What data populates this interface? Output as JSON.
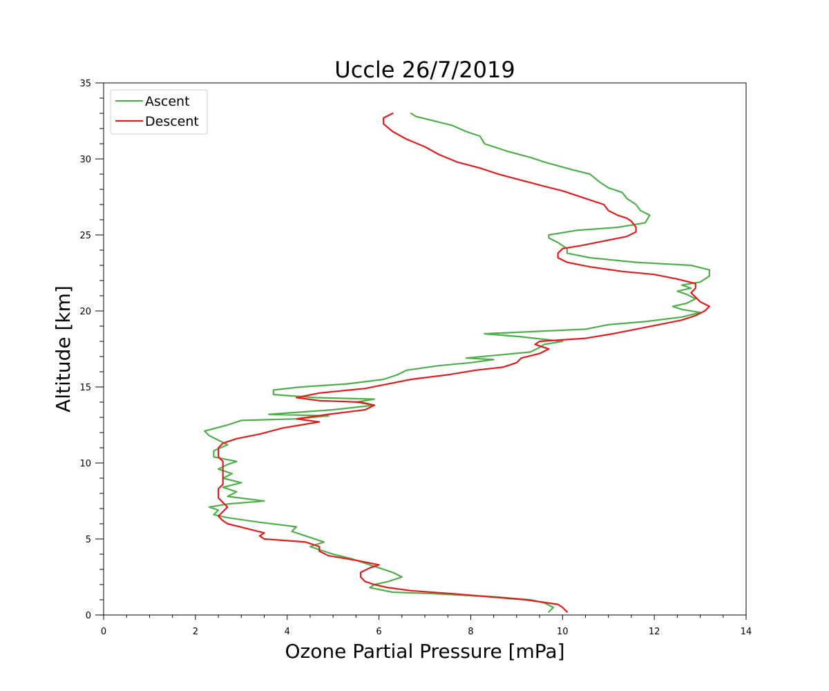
{
  "chart_data": {
    "type": "line",
    "title": "Uccle 26/7/2019",
    "xlabel": "Ozone Partial Pressure [mPa]",
    "ylabel": "Altitude [km]",
    "xlim": [
      0,
      14
    ],
    "ylim": [
      0,
      35
    ],
    "x_ticks": [
      0,
      2,
      4,
      6,
      8,
      10,
      12,
      14
    ],
    "y_ticks": [
      0,
      5,
      10,
      15,
      20,
      25,
      30,
      35
    ],
    "grid": false,
    "legend_position": "top-left",
    "series": [
      {
        "name": "Ascent",
        "color": "#4daf4a",
        "points": [
          [
            9.7,
            0.2
          ],
          [
            9.8,
            0.5
          ],
          [
            9.6,
            0.8
          ],
          [
            9.3,
            1.0
          ],
          [
            8.5,
            1.2
          ],
          [
            7.2,
            1.4
          ],
          [
            6.3,
            1.5
          ],
          [
            5.8,
            1.8
          ],
          [
            5.9,
            2.0
          ],
          [
            6.2,
            2.2
          ],
          [
            6.5,
            2.5
          ],
          [
            6.3,
            2.8
          ],
          [
            6.0,
            3.1
          ],
          [
            5.7,
            3.4
          ],
          [
            5.4,
            3.7
          ],
          [
            5.0,
            4.0
          ],
          [
            4.7,
            4.3
          ],
          [
            4.5,
            4.5
          ],
          [
            4.8,
            4.8
          ],
          [
            4.4,
            5.2
          ],
          [
            4.1,
            5.5
          ],
          [
            4.2,
            5.8
          ],
          [
            3.4,
            6.1
          ],
          [
            2.7,
            6.4
          ],
          [
            2.4,
            6.6
          ],
          [
            2.5,
            6.9
          ],
          [
            2.3,
            7.1
          ],
          [
            2.7,
            7.3
          ],
          [
            3.5,
            7.5
          ],
          [
            2.7,
            7.8
          ],
          [
            2.9,
            8.1
          ],
          [
            2.6,
            8.4
          ],
          [
            3.0,
            8.7
          ],
          [
            2.6,
            9.0
          ],
          [
            2.8,
            9.3
          ],
          [
            2.5,
            9.6
          ],
          [
            2.7,
            9.9
          ],
          [
            2.9,
            10.1
          ],
          [
            2.4,
            10.4
          ],
          [
            2.4,
            10.8
          ],
          [
            2.7,
            11.2
          ],
          [
            2.5,
            11.5
          ],
          [
            2.3,
            11.8
          ],
          [
            2.2,
            12.1
          ],
          [
            2.7,
            12.5
          ],
          [
            3.0,
            12.8
          ],
          [
            4.2,
            12.9
          ],
          [
            4.9,
            13.1
          ],
          [
            3.6,
            13.2
          ],
          [
            5.0,
            13.5
          ],
          [
            5.9,
            13.8
          ],
          [
            5.5,
            14.0
          ],
          [
            5.9,
            14.2
          ],
          [
            4.6,
            14.3
          ],
          [
            3.7,
            14.5
          ],
          [
            3.7,
            14.8
          ],
          [
            4.3,
            15.0
          ],
          [
            5.3,
            15.2
          ],
          [
            6.1,
            15.5
          ],
          [
            6.4,
            15.8
          ],
          [
            6.6,
            16.1
          ],
          [
            7.3,
            16.4
          ],
          [
            8.0,
            16.6
          ],
          [
            8.5,
            16.8
          ],
          [
            7.9,
            16.9
          ],
          [
            8.6,
            17.1
          ],
          [
            9.3,
            17.3
          ],
          [
            9.5,
            17.6
          ],
          [
            9.6,
            17.8
          ],
          [
            10.0,
            18.0
          ],
          [
            9.1,
            18.3
          ],
          [
            8.3,
            18.5
          ],
          [
            10.5,
            18.8
          ],
          [
            11.0,
            19.1
          ],
          [
            11.8,
            19.3
          ],
          [
            12.6,
            19.6
          ],
          [
            13.0,
            19.9
          ],
          [
            12.6,
            20.1
          ],
          [
            12.4,
            20.3
          ],
          [
            12.7,
            20.5
          ],
          [
            12.9,
            20.8
          ],
          [
            12.7,
            21.1
          ],
          [
            12.5,
            21.3
          ],
          [
            12.8,
            21.5
          ],
          [
            12.6,
            21.7
          ],
          [
            13.0,
            21.9
          ],
          [
            13.2,
            22.3
          ],
          [
            13.2,
            22.7
          ],
          [
            12.8,
            23.0
          ],
          [
            11.6,
            23.2
          ],
          [
            10.6,
            23.5
          ],
          [
            10.1,
            23.8
          ],
          [
            10.1,
            24.1
          ],
          [
            9.9,
            24.5
          ],
          [
            9.7,
            24.8
          ],
          [
            9.7,
            25.0
          ],
          [
            10.3,
            25.3
          ],
          [
            11.2,
            25.5
          ],
          [
            11.8,
            25.8
          ],
          [
            11.9,
            26.3
          ],
          [
            11.7,
            26.6
          ],
          [
            11.6,
            27.0
          ],
          [
            11.4,
            27.4
          ],
          [
            11.3,
            27.8
          ],
          [
            11.0,
            28.1
          ],
          [
            10.8,
            28.5
          ],
          [
            10.6,
            29.0
          ],
          [
            10.2,
            29.3
          ],
          [
            9.6,
            29.8
          ],
          [
            9.3,
            30.1
          ],
          [
            8.8,
            30.5
          ],
          [
            8.3,
            31.0
          ],
          [
            8.2,
            31.5
          ],
          [
            7.9,
            31.8
          ],
          [
            7.6,
            32.2
          ],
          [
            7.2,
            32.5
          ],
          [
            6.8,
            32.8
          ],
          [
            6.7,
            33.0
          ]
        ]
      },
      {
        "name": "Descent",
        "color": "#e41a1c",
        "points": [
          [
            10.1,
            0.2
          ],
          [
            10.0,
            0.5
          ],
          [
            9.9,
            0.7
          ],
          [
            9.2,
            1.0
          ],
          [
            8.4,
            1.2
          ],
          [
            7.6,
            1.4
          ],
          [
            6.7,
            1.6
          ],
          [
            6.2,
            1.8
          ],
          [
            5.9,
            2.0
          ],
          [
            5.7,
            2.2
          ],
          [
            5.6,
            2.5
          ],
          [
            5.6,
            2.8
          ],
          [
            5.8,
            3.1
          ],
          [
            6.0,
            3.3
          ],
          [
            5.5,
            3.6
          ],
          [
            4.9,
            3.9
          ],
          [
            4.7,
            4.2
          ],
          [
            4.7,
            4.5
          ],
          [
            4.4,
            4.8
          ],
          [
            3.5,
            5.0
          ],
          [
            3.4,
            5.2
          ],
          [
            3.5,
            5.4
          ],
          [
            3.1,
            5.7
          ],
          [
            2.7,
            6.0
          ],
          [
            2.6,
            6.2
          ],
          [
            2.5,
            6.5
          ],
          [
            2.6,
            6.8
          ],
          [
            2.7,
            7.1
          ],
          [
            2.6,
            7.4
          ],
          [
            2.5,
            7.7
          ],
          [
            2.5,
            8.0
          ],
          [
            2.5,
            8.3
          ],
          [
            2.6,
            8.6
          ],
          [
            2.6,
            8.9
          ],
          [
            2.6,
            9.2
          ],
          [
            2.6,
            9.5
          ],
          [
            2.6,
            9.8
          ],
          [
            2.6,
            10.1
          ],
          [
            2.5,
            10.4
          ],
          [
            2.5,
            10.7
          ],
          [
            2.5,
            11.0
          ],
          [
            2.6,
            11.3
          ],
          [
            2.9,
            11.6
          ],
          [
            3.4,
            11.9
          ],
          [
            3.9,
            12.3
          ],
          [
            4.3,
            12.5
          ],
          [
            4.7,
            12.7
          ],
          [
            4.2,
            12.9
          ],
          [
            4.9,
            13.2
          ],
          [
            5.7,
            13.5
          ],
          [
            5.9,
            13.8
          ],
          [
            5.6,
            14.0
          ],
          [
            4.7,
            14.1
          ],
          [
            4.2,
            14.3
          ],
          [
            4.7,
            14.6
          ],
          [
            5.7,
            14.9
          ],
          [
            6.2,
            15.2
          ],
          [
            6.7,
            15.5
          ],
          [
            7.5,
            15.8
          ],
          [
            8.1,
            16.1
          ],
          [
            8.7,
            16.3
          ],
          [
            9.0,
            16.6
          ],
          [
            9.1,
            16.9
          ],
          [
            9.5,
            17.2
          ],
          [
            9.7,
            17.5
          ],
          [
            9.4,
            17.8
          ],
          [
            9.5,
            18.0
          ],
          [
            10.5,
            18.2
          ],
          [
            11.1,
            18.5
          ],
          [
            11.6,
            18.8
          ],
          [
            12.1,
            19.1
          ],
          [
            12.6,
            19.4
          ],
          [
            12.9,
            19.7
          ],
          [
            13.1,
            20.0
          ],
          [
            13.2,
            20.3
          ],
          [
            13.0,
            20.6
          ],
          [
            12.9,
            20.9
          ],
          [
            12.8,
            21.2
          ],
          [
            12.9,
            21.5
          ],
          [
            12.9,
            21.8
          ],
          [
            12.5,
            22.1
          ],
          [
            12.0,
            22.4
          ],
          [
            11.3,
            22.6
          ],
          [
            10.6,
            22.9
          ],
          [
            10.1,
            23.2
          ],
          [
            9.9,
            23.5
          ],
          [
            9.9,
            23.8
          ],
          [
            10.0,
            24.1
          ],
          [
            10.4,
            24.3
          ],
          [
            10.9,
            24.6
          ],
          [
            11.4,
            24.9
          ],
          [
            11.6,
            25.2
          ],
          [
            11.6,
            25.5
          ],
          [
            11.5,
            25.9
          ],
          [
            11.4,
            26.1
          ],
          [
            11.2,
            26.3
          ],
          [
            11.0,
            26.6
          ],
          [
            10.9,
            27.0
          ],
          [
            10.6,
            27.3
          ],
          [
            10.3,
            27.6
          ],
          [
            10.0,
            27.9
          ],
          [
            9.6,
            28.2
          ],
          [
            9.1,
            28.6
          ],
          [
            8.6,
            29.0
          ],
          [
            8.2,
            29.4
          ],
          [
            7.7,
            29.8
          ],
          [
            7.3,
            30.3
          ],
          [
            7.0,
            30.8
          ],
          [
            6.6,
            31.3
          ],
          [
            6.3,
            31.8
          ],
          [
            6.1,
            32.3
          ],
          [
            6.1,
            32.7
          ],
          [
            6.3,
            33.0
          ]
        ]
      }
    ]
  }
}
